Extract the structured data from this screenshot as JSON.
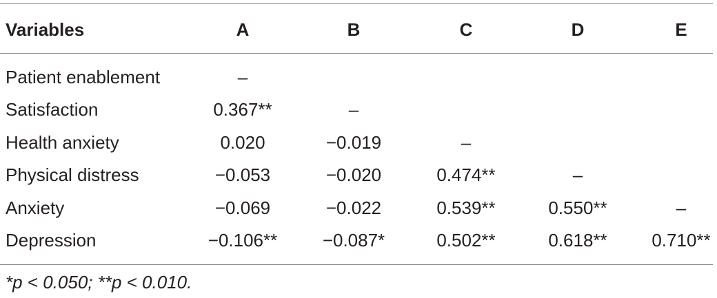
{
  "table": {
    "header": [
      "Variables",
      "A",
      "B",
      "C",
      "D",
      "E"
    ],
    "rows": [
      {
        "label": "Patient enablement",
        "cells": [
          "–"
        ]
      },
      {
        "label": "Satisfaction",
        "cells": [
          "0.367**",
          "–"
        ]
      },
      {
        "label": "Health anxiety",
        "cells": [
          "0.020",
          "−0.019",
          "–"
        ]
      },
      {
        "label": "Physical distress",
        "cells": [
          "−0.053",
          "−0.020",
          "0.474**",
          "–"
        ]
      },
      {
        "label": "Anxiety",
        "cells": [
          "−0.069",
          "−0.022",
          "0.539**",
          "0.550**",
          "–"
        ]
      },
      {
        "label": "Depression",
        "cells": [
          "−0.106**",
          "−0.087*",
          "0.502**",
          "0.618**",
          "0.710**"
        ]
      }
    ],
    "footnote": "*p < 0.050; **p < 0.010."
  }
}
